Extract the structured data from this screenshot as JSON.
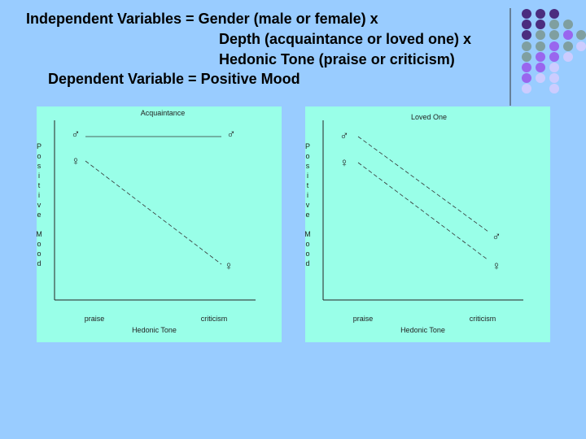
{
  "header": {
    "lines": [
      "Independent Variables = Gender (male or female) x",
      "Depth (acquaintance or loved one) x",
      "Hedonic Tone (praise or criticism)",
      "Dependent Variable = Positive Mood"
    ]
  },
  "panels": [
    {
      "title": "Acquaintance",
      "y_label": "Positive Mood",
      "x_categories": [
        "praise",
        "criticism"
      ],
      "x_label": "Hedonic Tone",
      "left_symbols": [
        "♂",
        "♀"
      ],
      "right_symbols": [
        "♂",
        "♀"
      ]
    },
    {
      "title": "Loved One",
      "y_label": "Positive Mood",
      "x_categories": [
        "praise",
        "criticism"
      ],
      "x_label": "Hedonic Tone",
      "left_symbols": [
        "♂",
        "♀"
      ],
      "right_symbols": [
        "♂",
        "♀"
      ]
    }
  ]
}
